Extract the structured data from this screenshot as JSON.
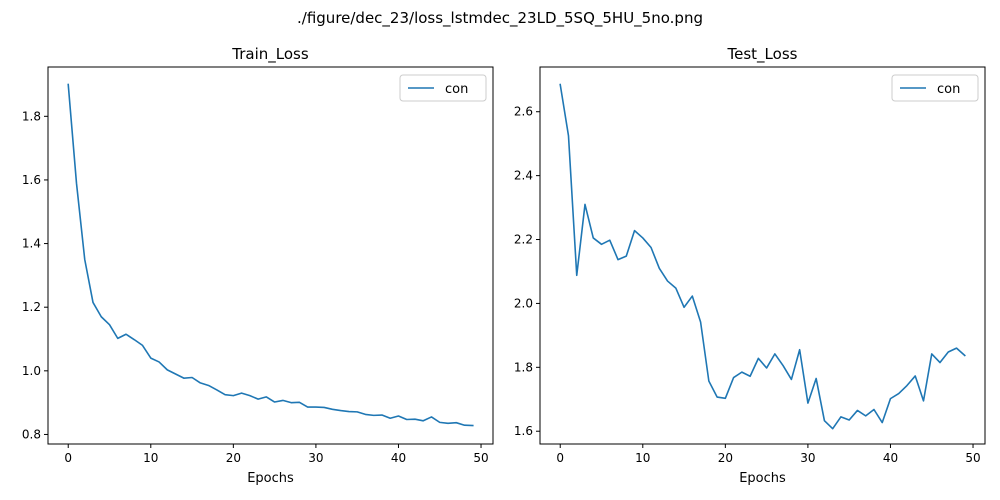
{
  "figure": {
    "suptitle": "./figure/dec_23/loss_lstmdec_23LD_5SQ_5HU_5no.png"
  },
  "chart_data": [
    {
      "type": "line",
      "title": "Train_Loss",
      "xlabel": "Epochs",
      "ylabel": "",
      "xlim": [
        -2.45,
        51.45
      ],
      "ylim": [
        0.77,
        1.955
      ],
      "xticks": [
        0,
        10,
        20,
        30,
        40,
        50
      ],
      "yticks": [
        0.8,
        1.0,
        1.2,
        1.4,
        1.6,
        1.8
      ],
      "ytick_labels": [
        "0.8",
        "1.0",
        "1.2",
        "1.4",
        "1.6",
        "1.8"
      ],
      "legend": "top-right",
      "grid": false,
      "series": [
        {
          "name": "con",
          "color": "#1f77b4",
          "x": [
            0,
            1,
            2,
            3,
            4,
            5,
            6,
            7,
            8,
            9,
            10,
            11,
            12,
            13,
            14,
            15,
            16,
            17,
            18,
            19,
            20,
            21,
            22,
            23,
            24,
            25,
            26,
            27,
            28,
            29,
            30,
            31,
            32,
            33,
            34,
            35,
            36,
            37,
            38,
            39,
            40,
            41,
            42,
            43,
            44,
            45,
            46,
            47,
            48,
            49
          ],
          "values": [
            1.9,
            1.59,
            1.35,
            1.215,
            1.17,
            1.145,
            1.102,
            1.115,
            1.098,
            1.08,
            1.04,
            1.028,
            1.003,
            0.99,
            0.977,
            0.979,
            0.962,
            0.954,
            0.94,
            0.925,
            0.922,
            0.93,
            0.922,
            0.911,
            0.918,
            0.902,
            0.907,
            0.9,
            0.901,
            0.886,
            0.886,
            0.885,
            0.879,
            0.875,
            0.872,
            0.871,
            0.863,
            0.86,
            0.861,
            0.851,
            0.858,
            0.847,
            0.848,
            0.843,
            0.855,
            0.838,
            0.835,
            0.837,
            0.829,
            0.828
          ]
        }
      ]
    },
    {
      "type": "line",
      "title": "Test_Loss",
      "xlabel": "Epochs",
      "ylabel": "",
      "xlim": [
        -2.45,
        51.45
      ],
      "ylim": [
        1.56,
        2.74
      ],
      "xticks": [
        0,
        10,
        20,
        30,
        40,
        50
      ],
      "yticks": [
        1.6,
        1.8,
        2.0,
        2.2,
        2.4,
        2.6
      ],
      "ytick_labels": [
        "1.6",
        "1.8",
        "2.0",
        "2.2",
        "2.4",
        "2.6"
      ],
      "legend": "top-right",
      "grid": false,
      "series": [
        {
          "name": "con",
          "color": "#1f77b4",
          "x": [
            0,
            1,
            2,
            3,
            4,
            5,
            6,
            7,
            8,
            9,
            10,
            11,
            12,
            13,
            14,
            15,
            16,
            17,
            18,
            19,
            20,
            21,
            22,
            23,
            24,
            25,
            26,
            27,
            28,
            29,
            30,
            31,
            32,
            33,
            34,
            35,
            36,
            37,
            38,
            39,
            40,
            41,
            42,
            43,
            44,
            45,
            46,
            47,
            48,
            49
          ],
          "values": [
            2.685,
            2.525,
            2.088,
            2.31,
            2.205,
            2.185,
            2.198,
            2.137,
            2.148,
            2.228,
            2.205,
            2.175,
            2.11,
            2.07,
            2.048,
            1.988,
            2.023,
            1.942,
            1.757,
            1.707,
            1.703,
            1.768,
            1.785,
            1.772,
            1.828,
            1.798,
            1.842,
            1.805,
            1.762,
            1.855,
            1.688,
            1.765,
            1.633,
            1.608,
            1.645,
            1.635,
            1.665,
            1.648,
            1.668,
            1.627,
            1.702,
            1.718,
            1.743,
            1.773,
            1.695,
            1.842,
            1.815,
            1.848,
            1.86,
            1.837
          ]
        }
      ]
    }
  ]
}
